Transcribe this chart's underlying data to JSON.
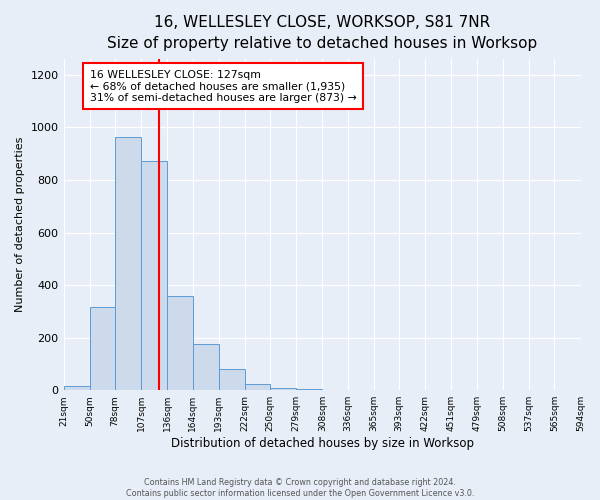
{
  "title": "16, WELLESLEY CLOSE, WORKSOP, S81 7NR",
  "subtitle": "Size of property relative to detached houses in Worksop",
  "xlabel": "Distribution of detached houses by size in Worksop",
  "ylabel": "Number of detached properties",
  "bin_edges": [
    21,
    50,
    78,
    107,
    136,
    164,
    193,
    222,
    250,
    279,
    308,
    336,
    365,
    393,
    422,
    451,
    479,
    508,
    537,
    565,
    594
  ],
  "bar_heights": [
    15,
    315,
    965,
    873,
    360,
    175,
    80,
    25,
    10,
    3,
    2,
    1,
    1,
    1,
    1,
    1,
    0,
    0,
    0,
    0
  ],
  "bar_color": "#ccdaeb",
  "bar_edge_color": "#5b9bd5",
  "property_size": 127,
  "vline_color": "red",
  "annotation_text": "16 WELLESLEY CLOSE: 127sqm\n← 68% of detached houses are smaller (1,935)\n31% of semi-detached houses are larger (873) →",
  "annotation_box_color": "white",
  "annotation_box_edge_color": "red",
  "ylim": [
    0,
    1260
  ],
  "yticks": [
    0,
    200,
    400,
    600,
    800,
    1000,
    1200
  ],
  "tick_labels": [
    "21sqm",
    "50sqm",
    "78sqm",
    "107sqm",
    "136sqm",
    "164sqm",
    "193sqm",
    "222sqm",
    "250sqm",
    "279sqm",
    "308sqm",
    "336sqm",
    "365sqm",
    "393sqm",
    "422sqm",
    "451sqm",
    "479sqm",
    "508sqm",
    "537sqm",
    "565sqm",
    "594sqm"
  ],
  "footer_text": "Contains HM Land Registry data © Crown copyright and database right 2024.\nContains public sector information licensed under the Open Government Licence v3.0.",
  "bg_color": "#e8eef8",
  "grid_color": "white",
  "title_fontsize": 11,
  "subtitle_fontsize": 9
}
